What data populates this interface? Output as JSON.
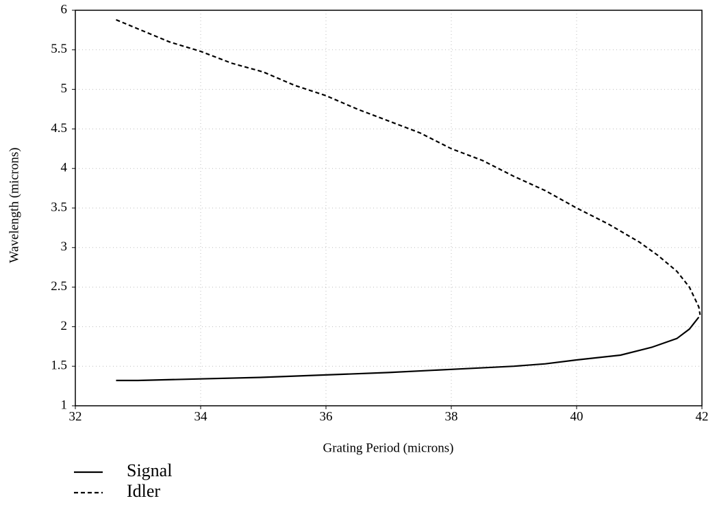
{
  "chart_data": {
    "type": "line",
    "xlabel": "Grating Period (microns)",
    "ylabel": "Wavelength (microns)",
    "xlim": [
      32,
      42
    ],
    "xticks": [
      32,
      34,
      36,
      38,
      40,
      42
    ],
    "ylim": [
      1,
      6
    ],
    "yticks": [
      1,
      1.5,
      2,
      2.5,
      3,
      3.5,
      4,
      4.5,
      5,
      5.5,
      6
    ],
    "grid": true,
    "series": [
      {
        "name": "Signal",
        "color": "#000000",
        "line_style": "solid",
        "x": [
          32.65,
          33,
          34,
          35,
          36,
          37,
          38,
          39,
          39.5,
          40,
          40.7,
          41.2,
          41.6,
          41.8,
          41.95
        ],
        "values": [
          1.32,
          1.32,
          1.34,
          1.36,
          1.39,
          1.42,
          1.46,
          1.5,
          1.53,
          1.58,
          1.64,
          1.74,
          1.85,
          1.97,
          2.12
        ]
      },
      {
        "name": "Idler",
        "color": "#000000",
        "line_style": "dashed",
        "x": [
          32.65,
          33.5,
          34,
          34.5,
          35,
          35.5,
          36,
          36.5,
          37,
          37.5,
          38,
          38.5,
          39,
          39.5,
          40,
          40.5,
          41,
          41.3,
          41.6,
          41.8,
          41.95,
          41.97
        ],
        "values": [
          5.88,
          5.6,
          5.48,
          5.33,
          5.22,
          5.05,
          4.92,
          4.75,
          4.6,
          4.45,
          4.25,
          4.1,
          3.9,
          3.72,
          3.5,
          3.3,
          3.07,
          2.9,
          2.7,
          2.5,
          2.25,
          2.15
        ]
      }
    ]
  }
}
